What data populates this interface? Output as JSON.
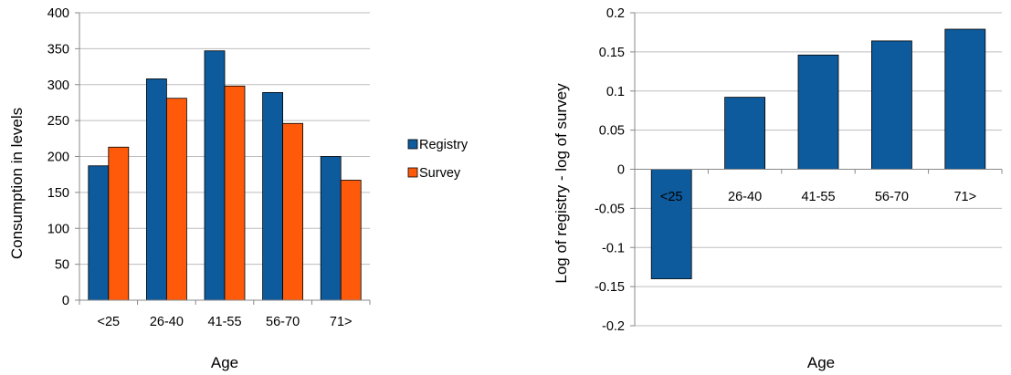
{
  "chart_data": [
    {
      "type": "bar",
      "categories": [
        "<25",
        "26-40",
        "41-55",
        "56-70",
        "71>"
      ],
      "series": [
        {
          "name": "Registry",
          "color": "#0d5a9c",
          "values": [
            187,
            308,
            347,
            289,
            200
          ]
        },
        {
          "name": "Survey",
          "color": "#ff5a0a",
          "values": [
            213,
            281,
            298,
            246,
            167
          ]
        }
      ],
      "title": "",
      "xlabel": "Age",
      "ylabel": "Consumption in levels",
      "ylim": [
        0,
        400
      ],
      "yticks": [
        "0",
        "50",
        "100",
        "150",
        "200",
        "250",
        "300",
        "350",
        "400"
      ],
      "grid": true,
      "legend": "right"
    },
    {
      "type": "bar",
      "categories": [
        "<25",
        "26-40",
        "41-55",
        "56-70",
        "71>"
      ],
      "series": [
        {
          "name": "",
          "color": "#0d5a9c",
          "values": [
            -0.14,
            0.092,
            0.146,
            0.164,
            0.179
          ]
        }
      ],
      "title": "",
      "xlabel": "Age",
      "ylabel": "Log of registry - log of survey",
      "ylim": [
        -0.2,
        0.2
      ],
      "yticks": [
        "-0.2",
        "-0.15",
        "-0.1",
        "-0.05",
        "0",
        "0.05",
        "0.1",
        "0.15",
        "0.2"
      ],
      "grid": true,
      "legend": "none"
    }
  ]
}
